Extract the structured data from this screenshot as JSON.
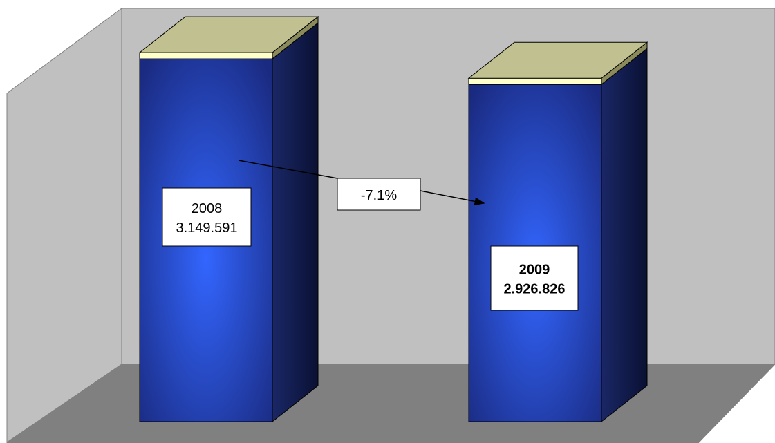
{
  "chart_data": {
    "type": "bar",
    "style": "3d-column",
    "categories": [
      "2008",
      "2009"
    ],
    "values": [
      3149591,
      2926826
    ],
    "data_labels": [
      {
        "year": "2008",
        "value": "3.149.591",
        "bold": false
      },
      {
        "year": "2009",
        "value": "2.926.826",
        "bold": true
      }
    ],
    "annotation": {
      "text": "-7.1%",
      "from": "2008",
      "to": "2009"
    },
    "ylim": [
      0,
      3600000
    ],
    "grid": false,
    "legend": "none"
  },
  "colors": {
    "back_wall": "#c0c0c0",
    "side_wall": "#c0c0c0",
    "floor": "#808080",
    "bar_front_center": "#3366ff",
    "bar_front_edge": "#1a2a80",
    "bar_side": "#0f1a4d",
    "bar_top": "#c0c090",
    "bar_top_rim": "#ffffcc"
  }
}
